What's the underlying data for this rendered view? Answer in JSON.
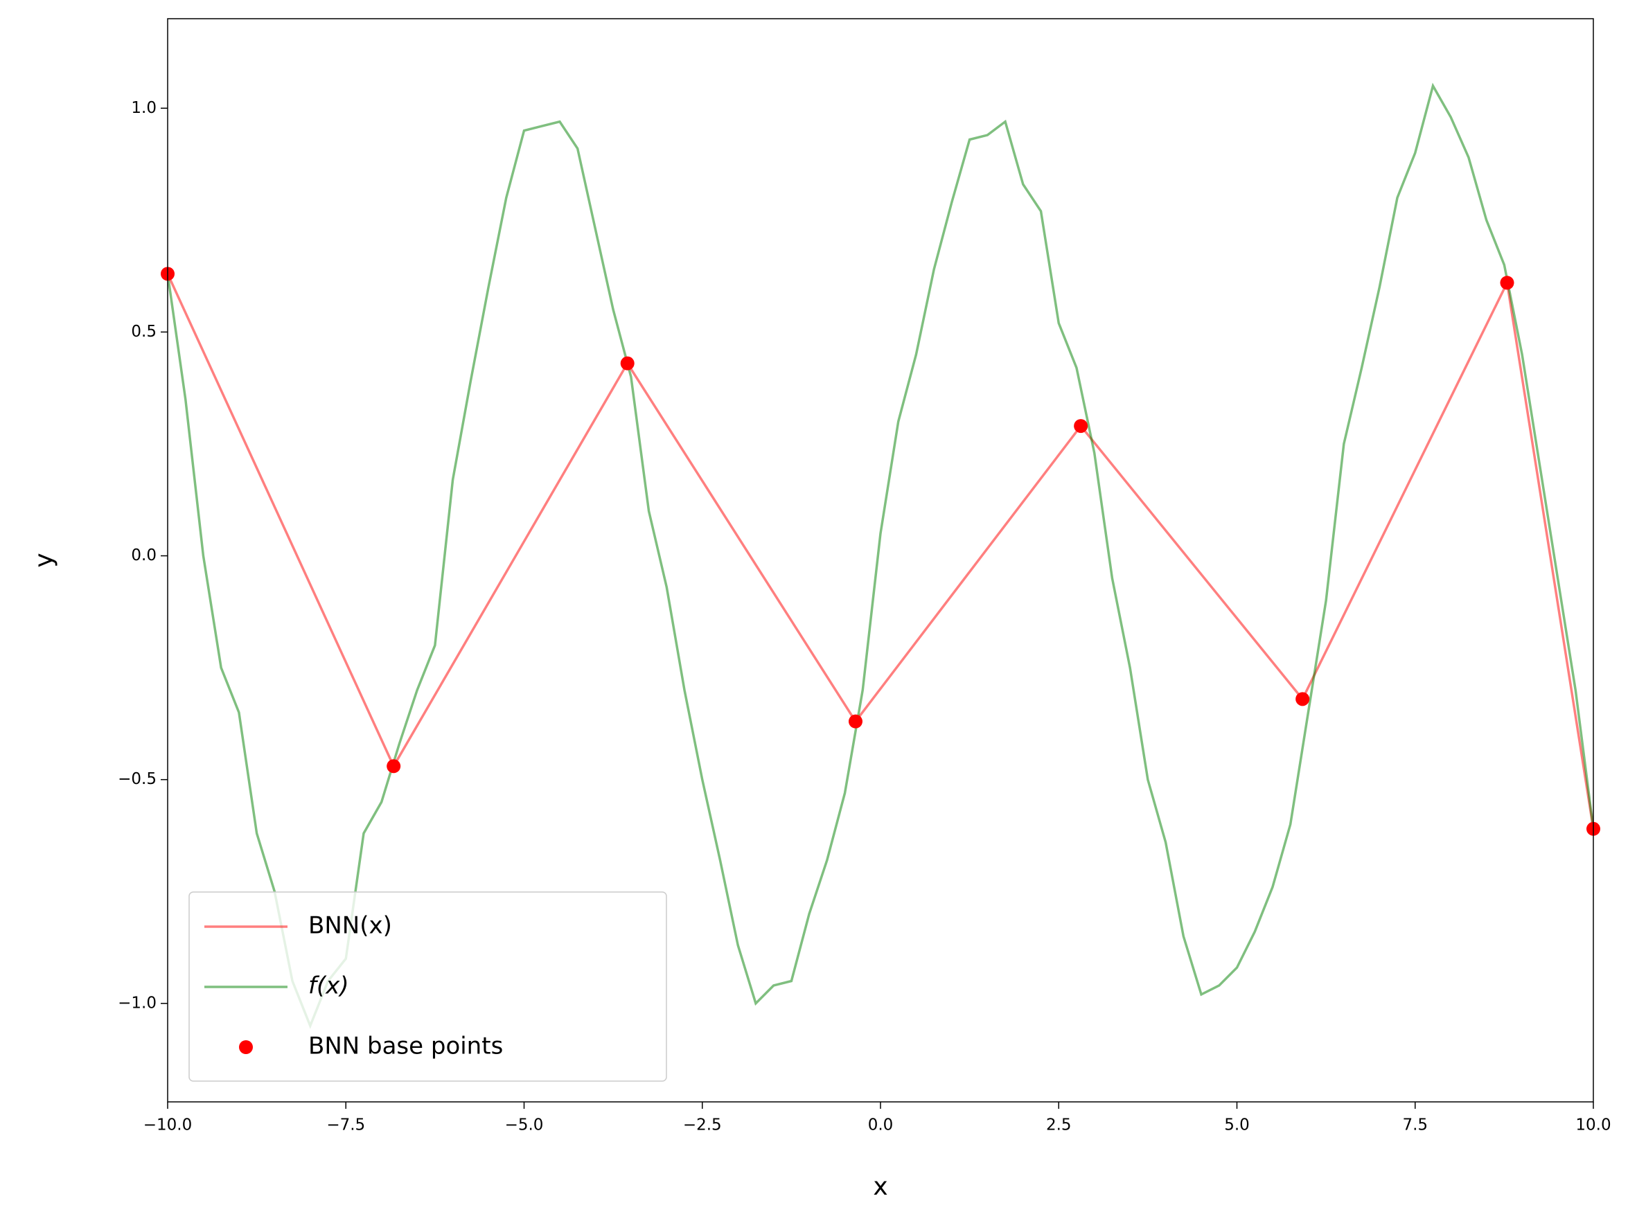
{
  "chart_data": {
    "type": "line",
    "xlabel": "x",
    "ylabel": "y",
    "xlim": [
      -10,
      10
    ],
    "ylim": [
      -1.22,
      1.2
    ],
    "xticks": [
      {
        "value": -10,
        "label": "−10.0"
      },
      {
        "value": -7.5,
        "label": "−7.5"
      },
      {
        "value": -5,
        "label": "−5.0"
      },
      {
        "value": -2.5,
        "label": "−2.5"
      },
      {
        "value": 0,
        "label": "0.0"
      },
      {
        "value": 2.5,
        "label": "2.5"
      },
      {
        "value": 5,
        "label": "5.0"
      },
      {
        "value": 7.5,
        "label": "7.5"
      },
      {
        "value": 10,
        "label": "10.0"
      }
    ],
    "yticks": [
      {
        "value": -1,
        "label": "−1.0"
      },
      {
        "value": -0.5,
        "label": "−0.5"
      },
      {
        "value": 0,
        "label": "0.0"
      },
      {
        "value": 0.5,
        "label": "0.5"
      },
      {
        "value": 1,
        "label": "1.0"
      }
    ],
    "legend": "lower left",
    "series": [
      {
        "name": "BNN(x)",
        "type": "line",
        "color": "#ff0000",
        "x": [
          -10,
          -6.83,
          -3.55,
          -0.35,
          2.81,
          5.92,
          8.79,
          10
        ],
        "values": [
          0.63,
          -0.47,
          0.43,
          -0.37,
          0.29,
          -0.32,
          0.61,
          -0.61
        ]
      },
      {
        "name": "f(x)",
        "type": "line",
        "color": "#008000",
        "x": [
          -10,
          -9.75,
          -9.5,
          -9.25,
          -9,
          -8.75,
          -8.5,
          -8.25,
          -8,
          -7.75,
          -7.5,
          -7.25,
          -7,
          -6.75,
          -6.5,
          -6.25,
          -6,
          -5.75,
          -5.5,
          -5.25,
          -5,
          -4.75,
          -4.5,
          -4.25,
          -4,
          -3.75,
          -3.5,
          -3.25,
          -3,
          -2.75,
          -2.5,
          -2.25,
          -2,
          -1.75,
          -1.5,
          -1.25,
          -1,
          -0.75,
          -0.5,
          -0.25,
          0,
          0.25,
          0.5,
          0.75,
          1,
          1.25,
          1.5,
          1.75,
          2,
          2.25,
          2.5,
          2.75,
          3,
          3.25,
          3.5,
          3.75,
          4,
          4.25,
          4.5,
          4.75,
          5,
          5.25,
          5.5,
          5.75,
          6,
          6.25,
          6.5,
          6.75,
          7,
          7.25,
          7.5,
          7.75,
          8,
          8.25,
          8.5,
          8.75,
          9,
          9.25,
          9.5,
          9.75,
          10
        ],
        "values": [
          0.63,
          0.35,
          0.0,
          -0.25,
          -0.35,
          -0.62,
          -0.75,
          -0.95,
          -1.05,
          -0.95,
          -0.9,
          -0.62,
          -0.55,
          -0.42,
          -0.3,
          -0.2,
          0.17,
          0.39,
          0.6,
          0.8,
          0.95,
          0.96,
          0.97,
          0.91,
          0.73,
          0.55,
          0.4,
          0.1,
          -0.07,
          -0.3,
          -0.5,
          -0.68,
          -0.87,
          -1.0,
          -0.96,
          -0.95,
          -0.8,
          -0.68,
          -0.53,
          -0.3,
          0.05,
          0.3,
          0.45,
          0.64,
          0.79,
          0.93,
          0.94,
          0.97,
          0.83,
          0.77,
          0.52,
          0.42,
          0.23,
          -0.05,
          -0.25,
          -0.5,
          -0.64,
          -0.85,
          -0.98,
          -0.96,
          -0.92,
          -0.84,
          -0.74,
          -0.6,
          -0.35,
          -0.1,
          0.25,
          0.42,
          0.6,
          0.8,
          0.9,
          1.05,
          0.98,
          0.89,
          0.75,
          0.65,
          0.45,
          0.2,
          -0.05,
          -0.3,
          -0.61
        ]
      },
      {
        "name": "BNN base points",
        "type": "scatter",
        "color": "#ff0000",
        "x": [
          -10,
          -6.83,
          -3.55,
          -0.35,
          2.81,
          5.92,
          8.79,
          10
        ],
        "values": [
          0.63,
          -0.47,
          0.43,
          -0.37,
          0.29,
          -0.32,
          0.61,
          -0.61
        ]
      }
    ]
  }
}
